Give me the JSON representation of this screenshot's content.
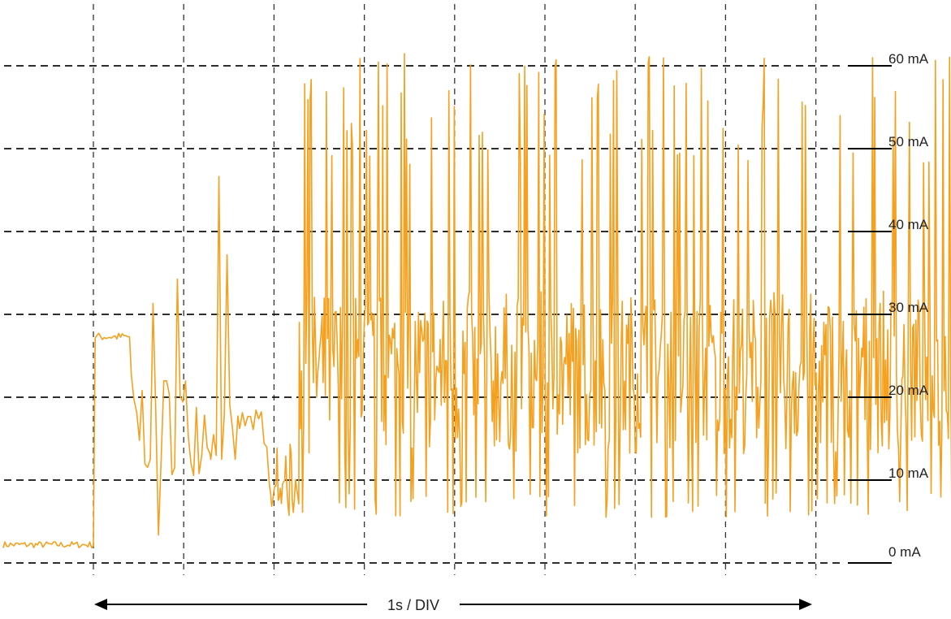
{
  "chart_data": {
    "type": "line",
    "title": "",
    "xlabel": "1s / DIV",
    "ylabel": "",
    "time_per_division_s": 1,
    "x_range_s": [
      -1,
      9.8
    ],
    "ylim": [
      0,
      60
    ],
    "y_unit": "mA",
    "y_ticks": [
      {
        "value": 60,
        "label": "60 mA"
      },
      {
        "value": 50,
        "label": "50 mA"
      },
      {
        "value": 40,
        "label": "40 mA"
      },
      {
        "value": 30,
        "label": "30 mA"
      },
      {
        "value": 20,
        "label": "20 mA"
      },
      {
        "value": 10,
        "label": 10,
        "label_text": "10 mA"
      },
      {
        "value": 0,
        "label": "0 mA"
      }
    ],
    "x_divisions": [
      0,
      1,
      2,
      3,
      4,
      5,
      6,
      7,
      8
    ],
    "grid": true,
    "series": [
      {
        "color": "#F5A01E",
        "segments": [
          {
            "t": [
              -1.0,
              0.02
            ],
            "baseline": 2.2,
            "min": 1.8,
            "max": 2.6,
            "density": "flat"
          },
          {
            "t": [
              0.02,
              0.42
            ],
            "baseline": 27.2,
            "min": 26.8,
            "max": 27.8,
            "density": "flat"
          },
          {
            "t": [
              0.42,
              1.3
            ],
            "baseline": 17.0,
            "min": 2.0,
            "max": 39.0,
            "density": "sparse"
          },
          {
            "t": [
              1.3,
              1.62
            ],
            "baseline": 13.0,
            "min": 12.5,
            "max": 48.0,
            "density": "sparse"
          },
          {
            "t": [
              1.62,
              1.95
            ],
            "baseline": 17.0,
            "min": 12.5,
            "max": 21.0,
            "density": "sparse"
          },
          {
            "t": [
              1.95,
              2.28
            ],
            "baseline": 8.5,
            "min": 5.5,
            "max": 14.5,
            "density": "dense"
          },
          {
            "t": [
              2.28,
              9.8
            ],
            "baseline": 23.0,
            "min": 5.5,
            "max": 61.5,
            "density": "dense"
          }
        ]
      }
    ]
  },
  "labels": {
    "y60": "60 mA",
    "y50": "50 mA",
    "y40": "40 mA",
    "y30": "30 mA",
    "y20": "20 mA",
    "y10": "10 mA",
    "y0": "0 mA",
    "time_division": "1s / DIV"
  }
}
